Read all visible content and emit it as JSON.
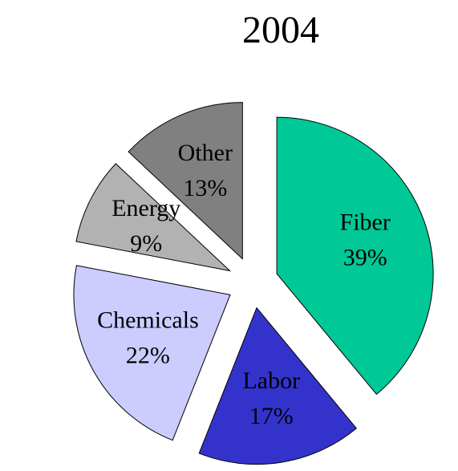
{
  "chart_data": {
    "type": "pie",
    "title": "2004",
    "categories": [
      "Fiber",
      "Labor",
      "Chemicals",
      "Energy",
      "Other"
    ],
    "values": [
      39,
      17,
      22,
      9,
      13
    ],
    "value_labels": [
      "39%",
      "17%",
      "22%",
      "9%",
      "13%"
    ],
    "colors": [
      "#00c896",
      "#3333cc",
      "#ccccff",
      "#b2b2b2",
      "#808080"
    ]
  }
}
